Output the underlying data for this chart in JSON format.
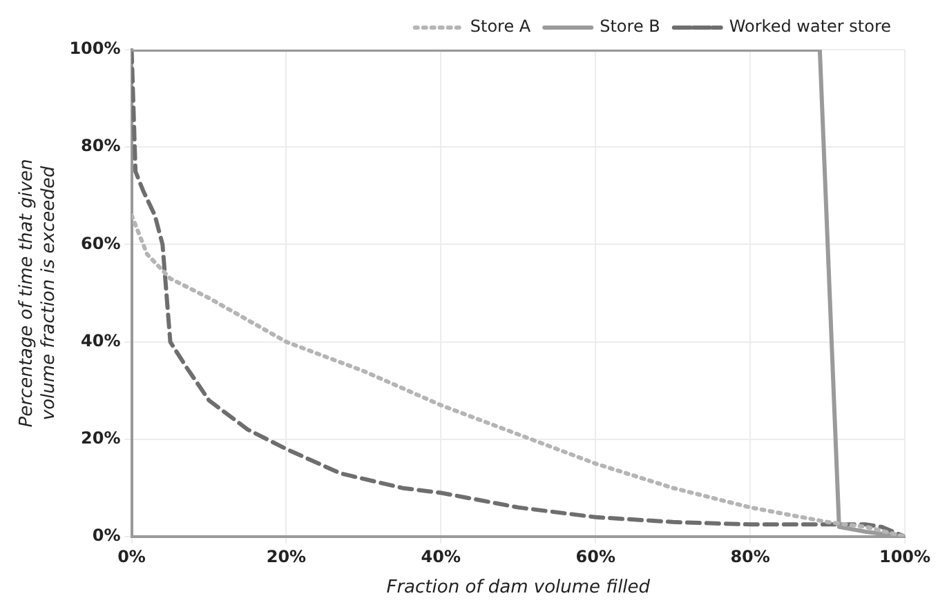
{
  "chart_data": {
    "type": "line",
    "xlabel": "Fraction of dam volume filled",
    "ylabel": "Percentage of time that given volume fraction is exceeded",
    "xlim": [
      0,
      100
    ],
    "ylim": [
      0,
      100
    ],
    "xticks": [
      {
        "value": 0,
        "label": "0%"
      },
      {
        "value": 20,
        "label": "20%"
      },
      {
        "value": 40,
        "label": "40%"
      },
      {
        "value": 60,
        "label": "60%"
      },
      {
        "value": 80,
        "label": "80%"
      },
      {
        "value": 100,
        "label": "100%"
      }
    ],
    "yticks": [
      {
        "value": 0,
        "label": "0%"
      },
      {
        "value": 20,
        "label": "20%"
      },
      {
        "value": 40,
        "label": "40%"
      },
      {
        "value": 60,
        "label": "60%"
      },
      {
        "value": 80,
        "label": "80%"
      },
      {
        "value": 100,
        "label": "100%"
      }
    ],
    "grid": true,
    "legend": "top right",
    "marker": "none",
    "series": [
      {
        "name": "Store A",
        "color": "#b5b5b5",
        "line_style": "dotted",
        "x": [
          0,
          2,
          5,
          10,
          20,
          30,
          40,
          50,
          60,
          70,
          80,
          90,
          95,
          100
        ],
        "values": [
          66,
          58,
          53,
          49,
          40,
          34,
          27,
          21,
          15,
          10,
          6,
          3,
          2,
          0
        ]
      },
      {
        "name": "Store B",
        "color": "#9a9a9a",
        "line_style": "solid",
        "x": [
          0,
          89,
          91.5,
          95,
          100
        ],
        "values": [
          100,
          100,
          2,
          1,
          0
        ]
      },
      {
        "name": "Worked water store",
        "color": "#6e6e6e",
        "line_style": "dashed",
        "x": [
          0,
          0.5,
          1.5,
          3,
          4,
          4.5,
          5,
          7,
          10,
          15,
          20,
          27,
          35,
          40,
          50,
          60,
          70,
          80,
          90,
          95,
          97,
          100
        ],
        "values": [
          100,
          75,
          71,
          66,
          60,
          50,
          40,
          35,
          28,
          22,
          18,
          13,
          10,
          9,
          6,
          4,
          3,
          2.5,
          2.5,
          2.5,
          2,
          0
        ]
      }
    ]
  }
}
